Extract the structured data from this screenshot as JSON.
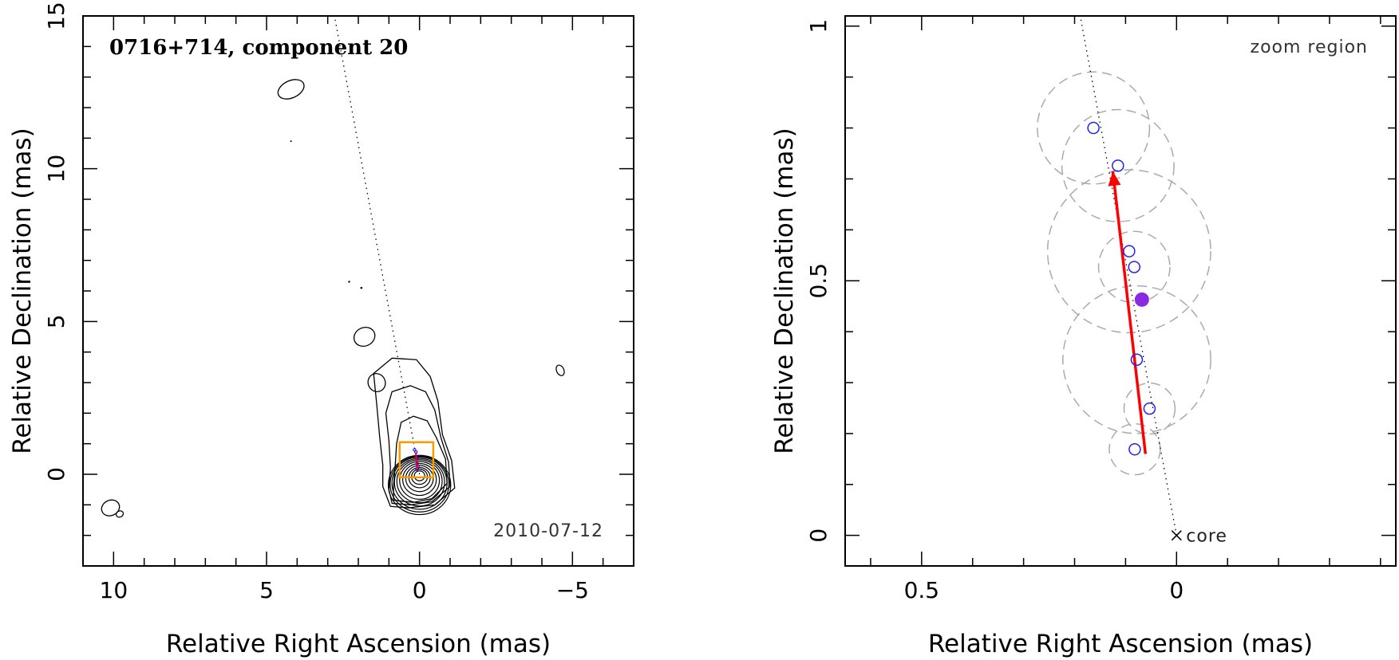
{
  "chart_data": [
    {
      "type": "scatter",
      "title": "0716+714, component 20",
      "date": "2010-07-12",
      "xlabel": "Relative Right Ascension (mas)",
      "ylabel": "Relative Declination (mas)",
      "xlim": [
        11,
        -7
      ],
      "ylim": [
        -3,
        15
      ],
      "xticks": [
        10,
        5,
        0,
        -5
      ],
      "xtick_labels": [
        "10",
        "5",
        "0",
        "−5"
      ],
      "yticks": [
        0,
        5,
        10,
        15
      ],
      "ytick_labels": [
        "0",
        "5",
        "10",
        "15"
      ],
      "contours_centered_at": [
        0,
        0
      ],
      "jet_axis_angle_deg": -10.5,
      "zoom_box": {
        "x": [
          -0.45,
          0.65
        ],
        "y": [
          -0.1,
          1.05
        ],
        "color": "#f59b00"
      },
      "isolated_contours": [
        [
          4.2,
          12.6
        ],
        [
          10.1,
          -1.1
        ],
        [
          9.8,
          -1.3
        ],
        [
          1.8,
          4.5
        ],
        [
          1.4,
          3.0
        ],
        [
          -4.6,
          3.4
        ]
      ],
      "colors": {
        "contour": "#000000",
        "zoom_box": "#f59b00",
        "marker": "#0000ff",
        "arrow": "#ff0000"
      }
    },
    {
      "type": "scatter",
      "annotation": "zoom region",
      "xlabel": "Relative Right Ascension (mas)",
      "ylabel": "Relative Declination (mas)",
      "xlim": [
        0.65,
        -0.43
      ],
      "ylim": [
        -0.06,
        1.02
      ],
      "xticks": [
        0.5,
        0
      ],
      "xtick_labels": [
        "0.5",
        "0"
      ],
      "yticks": [
        0,
        0.5,
        1
      ],
      "ytick_labels": [
        "0",
        "0.5",
        "1"
      ],
      "core_label": "core",
      "core_position": [
        0,
        0
      ],
      "series": [
        {
          "marker": "open-circle",
          "color": "#2222ee",
          "points": [
            [
              0.163,
              0.8
            ],
            [
              0.115,
              0.726
            ],
            [
              0.093,
              0.558
            ],
            [
              0.083,
              0.527
            ],
            [
              0.078,
              0.345
            ],
            [
              0.053,
              0.249
            ],
            [
              0.082,
              0.169
            ]
          ],
          "uncertainty_radius": [
            0.11,
            0.11,
            0.16,
            0.07,
            0.145,
            0.05,
            0.05
          ]
        },
        {
          "marker": "filled-circle",
          "color": "#8a2be2",
          "points": [
            [
              0.068,
              0.463
            ]
          ]
        }
      ],
      "arrow": {
        "from": [
          0.061,
          0.16
        ],
        "to": [
          0.125,
          0.715
        ],
        "color": "#ff0000"
      },
      "jet_axis_angle_deg": -10.5
    }
  ]
}
